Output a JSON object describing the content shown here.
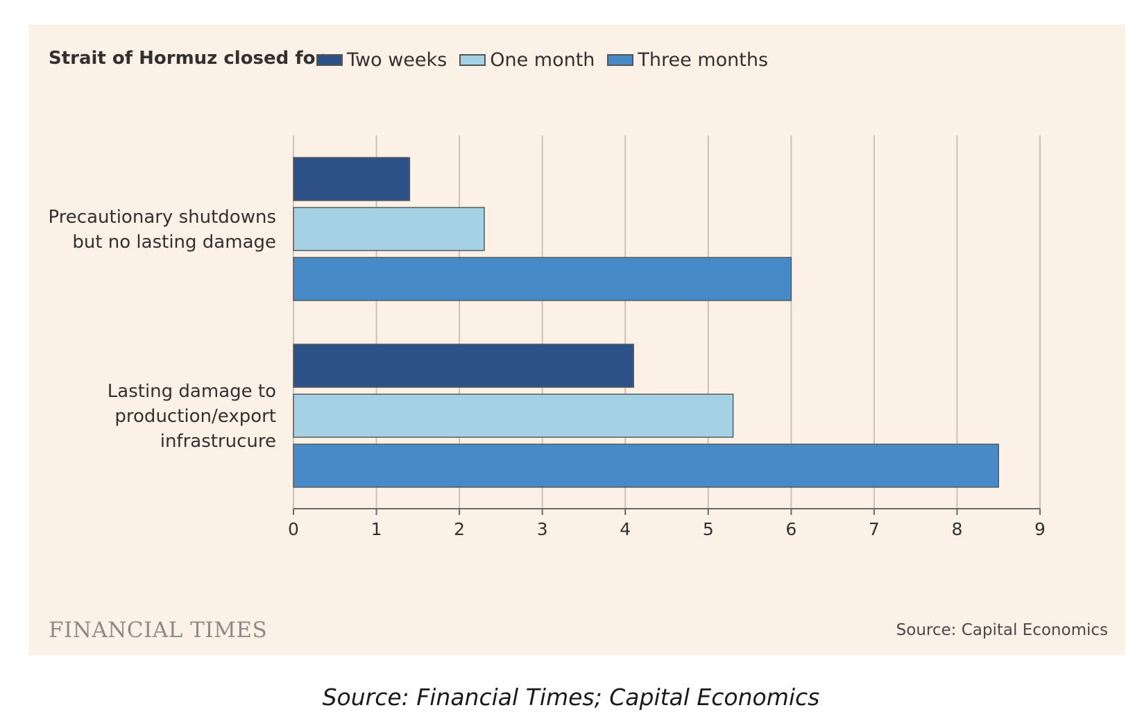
{
  "chart_data": {
    "type": "bar",
    "orientation": "horizontal",
    "legend_title": "Strait of Hormuz closed for",
    "categories": [
      [
        "Precautionary shutdowns",
        "but no lasting damage"
      ],
      [
        "Lasting damage to",
        "production/export",
        "infrastrucure"
      ]
    ],
    "series": [
      {
        "name": "Two weeks",
        "color": "#2b5186",
        "values": [
          1.4,
          4.1
        ]
      },
      {
        "name": "One month",
        "color": "#a4d2e4",
        "values": [
          2.3,
          5.3
        ]
      },
      {
        "name": "Three months",
        "color": "#468ac7",
        "values": [
          6.0,
          8.5
        ]
      }
    ],
    "xlim": [
      0,
      9
    ],
    "xticks": [
      0,
      1,
      2,
      3,
      4,
      5,
      6,
      7,
      8,
      9
    ],
    "grid": true,
    "legend_position": "top-left"
  },
  "branding": {
    "logo": "FINANCIAL TIMES"
  },
  "source_inner": "Source: Capital Economics",
  "caption": "Source: Financial Times; Capital Economics"
}
